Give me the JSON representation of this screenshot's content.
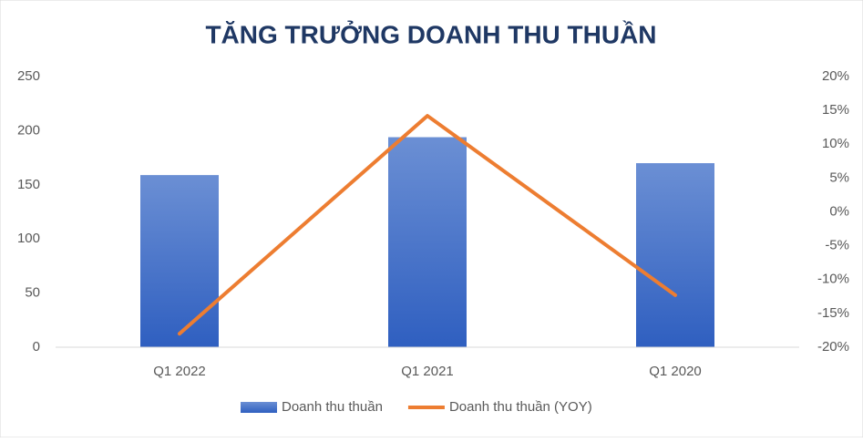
{
  "chart_data": {
    "type": "bar-line",
    "title": "TĂNG TRƯỞNG DOANH THU THUẦN",
    "categories": [
      "Q1 2022",
      "Q1 2021",
      "Q1 2020"
    ],
    "series": [
      {
        "name": "Doanh thu thuần",
        "type": "bar",
        "color": "#4472c4",
        "values": [
          159,
          194,
          170
        ]
      },
      {
        "name": "Doanh thu thuần (YOY)",
        "type": "line",
        "axis": "y2",
        "color": "#ed7d31",
        "values": [
          -18,
          14.2,
          -12.3
        ]
      }
    ],
    "ylim": [
      0,
      250
    ],
    "yticks": [
      0,
      50,
      100,
      150,
      200,
      250
    ],
    "y2lim": [
      -20,
      20
    ],
    "y2ticks": [
      {
        "value": -20,
        "label": "-20%"
      },
      {
        "value": -15,
        "label": "-15%"
      },
      {
        "value": -10,
        "label": "-10%"
      },
      {
        "value": -5,
        "label": "-5%"
      },
      {
        "value": 0,
        "label": "0%"
      },
      {
        "value": 5,
        "label": "5%"
      },
      {
        "value": 10,
        "label": "10%"
      },
      {
        "value": 15,
        "label": "15%"
      },
      {
        "value": 20,
        "label": "20%"
      }
    ],
    "grid": false,
    "legend": "bottom"
  }
}
